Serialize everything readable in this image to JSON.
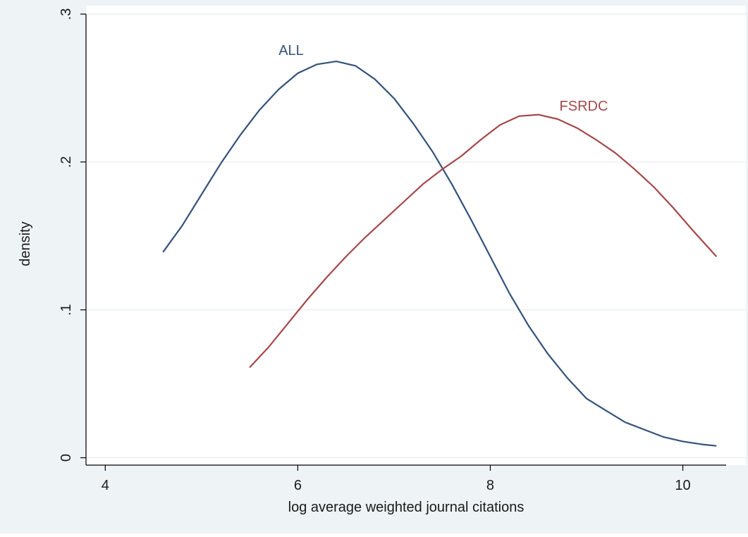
{
  "chart_data": {
    "type": "line",
    "title": "",
    "xlabel": "log average weighted journal citations",
    "ylabel": "density",
    "xlim": [
      3.8,
      10.45
    ],
    "ylim": [
      -0.005,
      0.3
    ],
    "x_ticks": [
      {
        "value": 4,
        "label": "4"
      },
      {
        "value": 6,
        "label": "6"
      },
      {
        "value": 8,
        "label": "8"
      },
      {
        "value": 10,
        "label": "10"
      }
    ],
    "y_ticks": [
      {
        "value": 0,
        "label": "0"
      },
      {
        "value": 0.1,
        "label": ".1"
      },
      {
        "value": 0.2,
        "label": ".2"
      },
      {
        "value": 0.3,
        "label": ".3"
      }
    ],
    "grid": true,
    "series": [
      {
        "name": "ALL",
        "color": "#34527a",
        "x": [
          4.6,
          4.8,
          5.0,
          5.2,
          5.4,
          5.6,
          5.8,
          6.0,
          6.2,
          6.4,
          6.6,
          6.8,
          7.0,
          7.2,
          7.4,
          7.6,
          7.8,
          8.0,
          8.2,
          8.4,
          8.6,
          8.8,
          9.0,
          9.2,
          9.4,
          9.6,
          9.8,
          10.0,
          10.2,
          10.35
        ],
        "y": [
          0.139,
          0.157,
          0.178,
          0.199,
          0.218,
          0.235,
          0.249,
          0.26,
          0.266,
          0.268,
          0.265,
          0.256,
          0.243,
          0.226,
          0.207,
          0.185,
          0.161,
          0.136,
          0.111,
          0.089,
          0.07,
          0.054,
          0.04,
          0.032,
          0.024,
          0.019,
          0.014,
          0.011,
          0.009,
          0.008
        ]
      },
      {
        "name": "FSRDC",
        "color": "#a4484a",
        "x": [
          5.5,
          5.7,
          5.9,
          6.1,
          6.3,
          6.5,
          6.7,
          6.9,
          7.1,
          7.3,
          7.5,
          7.7,
          7.9,
          8.1,
          8.3,
          8.5,
          8.7,
          8.9,
          9.1,
          9.3,
          9.5,
          9.7,
          9.9,
          10.1,
          10.35
        ],
        "y": [
          0.061,
          0.075,
          0.091,
          0.107,
          0.122,
          0.136,
          0.149,
          0.161,
          0.173,
          0.185,
          0.195,
          0.204,
          0.215,
          0.225,
          0.231,
          0.232,
          0.229,
          0.223,
          0.215,
          0.206,
          0.195,
          0.183,
          0.169,
          0.154,
          0.136
        ]
      }
    ]
  }
}
